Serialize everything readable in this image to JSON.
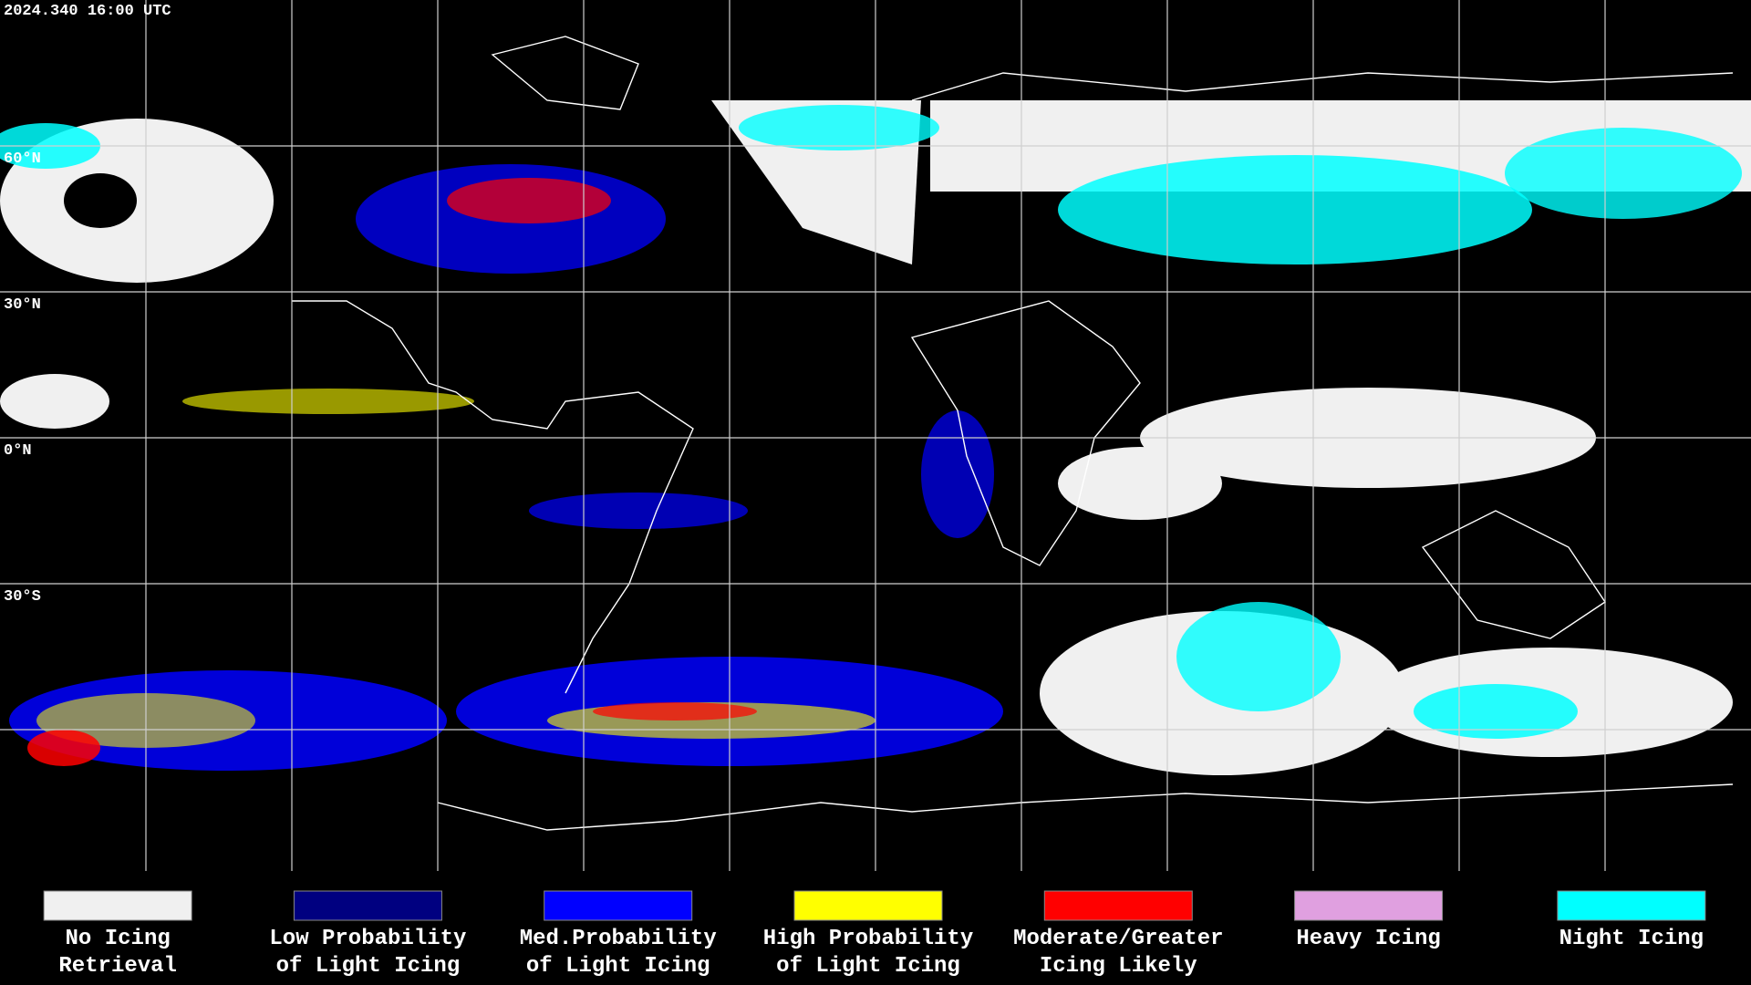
{
  "header": {
    "timestamp": "2024.340 16:00 UTC"
  },
  "latitude_labels": [
    "60°N",
    "30°N",
    "0°N",
    "30°S"
  ],
  "legend": [
    {
      "lines": [
        "No Icing",
        "Retrieval"
      ],
      "color": "#f0f0f0"
    },
    {
      "lines": [
        "Low Probability",
        "of Light Icing"
      ],
      "color": "#000080"
    },
    {
      "lines": [
        "Med.Probability",
        "of Light Icing"
      ],
      "color": "#0000ff"
    },
    {
      "lines": [
        "High Probability",
        "of Light Icing"
      ],
      "color": "#ffff00"
    },
    {
      "lines": [
        "Moderate/Greater",
        "Icing Likely"
      ],
      "color": "#ff0000"
    },
    {
      "lines": [
        "Heavy Icing"
      ],
      "color": "#e0a0e0"
    },
    {
      "lines": [
        "Night Icing"
      ],
      "color": "#00ffff"
    }
  ]
}
